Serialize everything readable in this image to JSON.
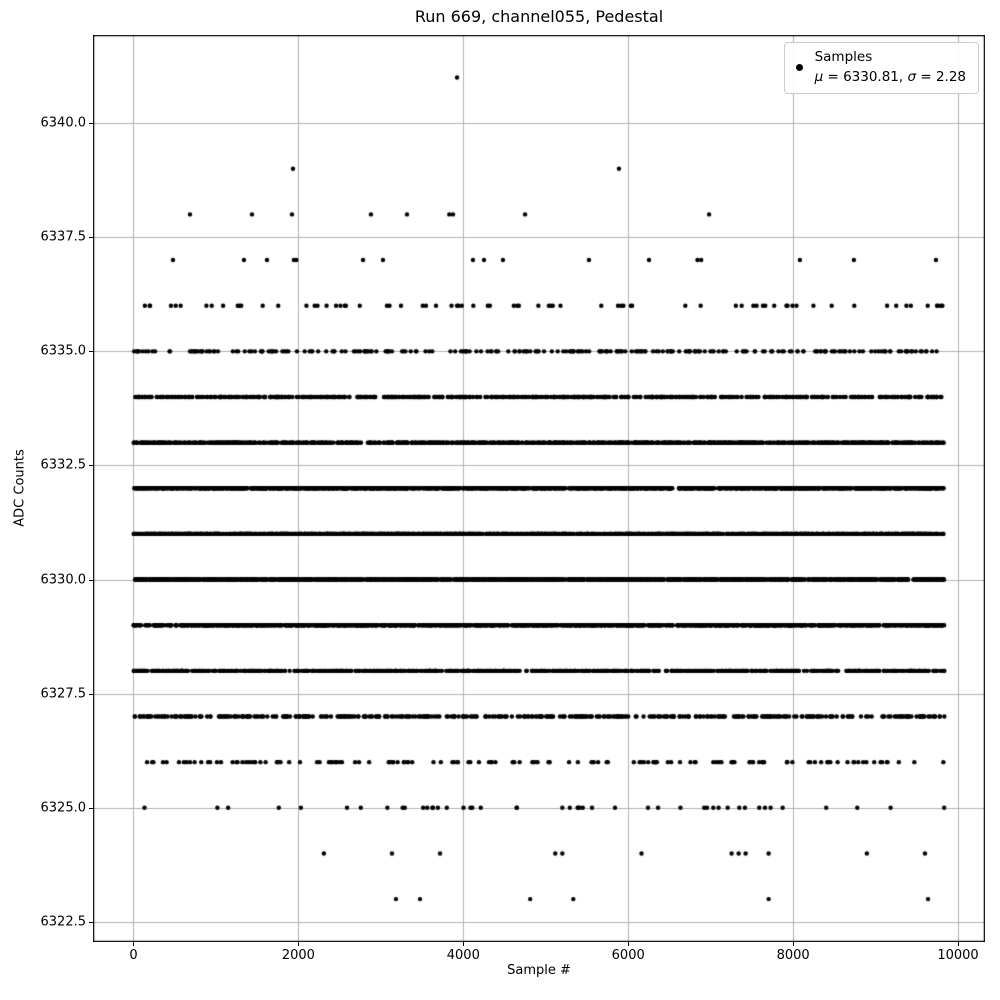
{
  "figure": {
    "title": "Run 669, channel055, Pedestal",
    "xlabel": "Sample #",
    "ylabel": "ADC Counts",
    "background_color": "#ffffff",
    "grid_color": "#b0b0b0",
    "spine_color": "#000000",
    "marker_color": "#000000"
  },
  "legend": {
    "label": "Samples",
    "mu_symbol": "μ",
    "mu_text": " = 6330.81, ",
    "sigma_symbol": "σ",
    "sigma_text": " = 2.28"
  },
  "chart_data": {
    "type": "scatter",
    "title": "Run 669, channel055, Pedestal",
    "xlabel": "Sample #",
    "ylabel": "ADC Counts",
    "legend_label": "Samples",
    "mu": 6330.81,
    "sigma": 2.28,
    "n_samples": 9836,
    "xlim": [
      -491,
      10327
    ],
    "ylim": [
      6322.06,
      6341.93
    ],
    "grid": true,
    "legend_position": "upper right",
    "marker_diameter_px": 4.4,
    "x_ticks": [
      {
        "v": 0,
        "label": "0"
      },
      {
        "v": 2000,
        "label": "2000"
      },
      {
        "v": 4000,
        "label": "4000"
      },
      {
        "v": 6000,
        "label": "6000"
      },
      {
        "v": 8000,
        "label": "8000"
      },
      {
        "v": 10000,
        "label": "10000"
      }
    ],
    "y_ticks": [
      {
        "v": 6340.0,
        "label": "6340.0"
      },
      {
        "v": 6337.5,
        "label": "6337.5"
      },
      {
        "v": 6335.0,
        "label": "6335.0"
      },
      {
        "v": 6332.5,
        "label": "6332.5"
      },
      {
        "v": 6330.0,
        "label": "6330.0"
      },
      {
        "v": 6327.5,
        "label": "6327.5"
      },
      {
        "v": 6325.0,
        "label": "6325.0"
      },
      {
        "v": 6322.5,
        "label": "6322.5"
      }
    ],
    "levels": [
      {
        "adc": 6341,
        "samples": [
          3924
        ]
      },
      {
        "adc": 6339,
        "samples": [
          1934,
          5888
        ]
      },
      {
        "adc": 6338,
        "samples": [
          685,
          1437,
          1922,
          2880,
          3317,
          3830,
          3875,
          4749,
          6981
        ]
      },
      {
        "adc": 6337,
        "samples": [
          479,
          1340,
          1619,
          1945,
          1975,
          2784,
          3026,
          4117,
          4251,
          4481,
          5524,
          6252,
          6840,
          6885,
          8082,
          8737,
          9732
        ]
      },
      {
        "adc": 6336,
        "count": 75
      },
      {
        "adc": 6335,
        "count": 260
      },
      {
        "adc": 6334,
        "count": 620
      },
      {
        "adc": 6333,
        "count": 1050
      },
      {
        "adc": 6332,
        "count": 1450
      },
      {
        "adc": 6331,
        "count": 1700
      },
      {
        "adc": 6330,
        "count": 1600
      },
      {
        "adc": 6329,
        "count": 1250
      },
      {
        "adc": 6328,
        "count": 780
      },
      {
        "adc": 6327,
        "count": 420
      },
      {
        "adc": 6326,
        "count": 150
      },
      {
        "adc": 6325,
        "count": 48
      },
      {
        "adc": 6324,
        "samples": [
          2309,
          3135,
          3718,
          5115,
          5201,
          6161,
          7254,
          7339,
          7424,
          7703,
          8894,
          9599
        ]
      },
      {
        "adc": 6323,
        "samples": [
          3183,
          3475,
          4811,
          5334,
          7703,
          9636
        ]
      }
    ]
  }
}
